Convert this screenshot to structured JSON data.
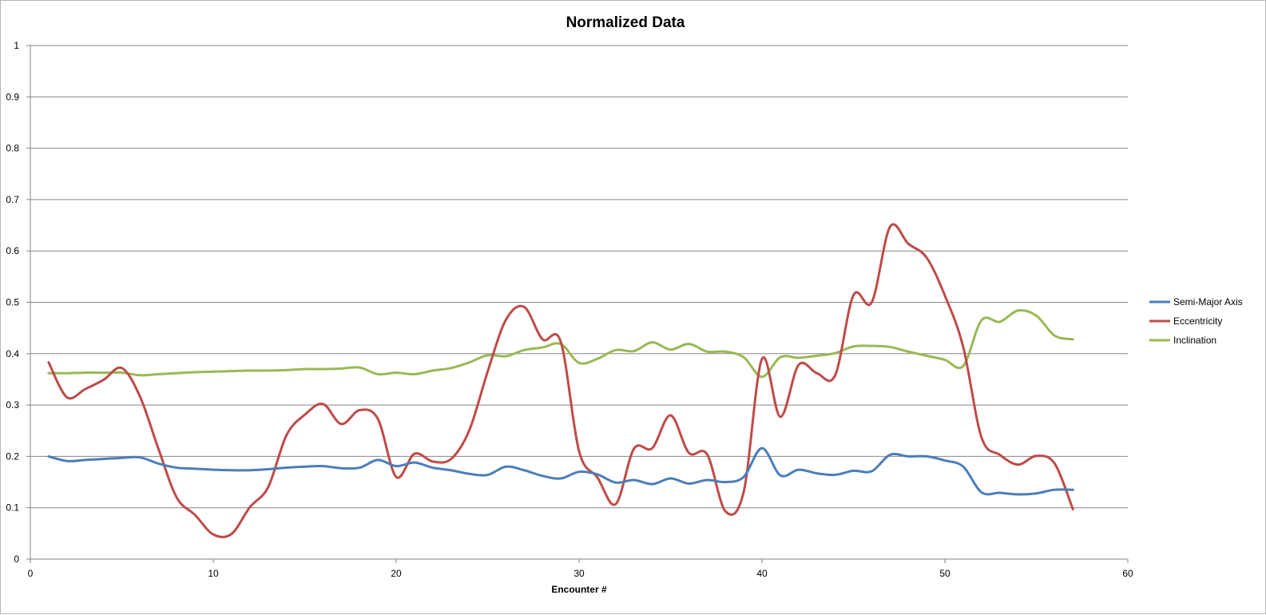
{
  "chart_data": {
    "type": "line",
    "title": "Normalized Data",
    "xlabel": "Encounter #",
    "ylabel": "",
    "xlim": [
      0,
      60
    ],
    "ylim": [
      0,
      1
    ],
    "x_ticks": [
      "0",
      "10",
      "20",
      "30",
      "40",
      "50",
      "60"
    ],
    "y_ticks": [
      "0",
      "0.1",
      "0.2",
      "0.3",
      "0.4",
      "0.5",
      "0.6",
      "0.7",
      "0.8",
      "0.9",
      "1"
    ],
    "grid": true,
    "legend_position": "right",
    "x": [
      1,
      2,
      3,
      4,
      5,
      6,
      7,
      8,
      9,
      10,
      11,
      12,
      13,
      14,
      15,
      16,
      17,
      18,
      19,
      20,
      21,
      22,
      23,
      24,
      25,
      26,
      27,
      28,
      29,
      30,
      31,
      32,
      33,
      34,
      35,
      36,
      37,
      38,
      39,
      40,
      41,
      42,
      43,
      44,
      45,
      46,
      47,
      48,
      49,
      50,
      51,
      52,
      53,
      54,
      55,
      56,
      57
    ],
    "series": [
      {
        "name": "Semi-Major Axis",
        "color": "#4a7ebb",
        "values": [
          0.2,
          0.191,
          0.193,
          0.195,
          0.197,
          0.198,
          0.186,
          0.178,
          0.176,
          0.174,
          0.173,
          0.173,
          0.175,
          0.178,
          0.18,
          0.181,
          0.177,
          0.178,
          0.193,
          0.181,
          0.188,
          0.178,
          0.173,
          0.166,
          0.164,
          0.18,
          0.173,
          0.162,
          0.157,
          0.17,
          0.165,
          0.149,
          0.154,
          0.146,
          0.157,
          0.147,
          0.154,
          0.15,
          0.16,
          0.216,
          0.163,
          0.174,
          0.167,
          0.164,
          0.172,
          0.171,
          0.203,
          0.2,
          0.2,
          0.192,
          0.18,
          0.13,
          0.129,
          0.126,
          0.128,
          0.135,
          0.135
        ]
      },
      {
        "name": "Eccentricity",
        "color": "#be4b48",
        "values": [
          0.383,
          0.315,
          0.331,
          0.349,
          0.372,
          0.316,
          0.215,
          0.12,
          0.086,
          0.048,
          0.049,
          0.101,
          0.14,
          0.241,
          0.281,
          0.302,
          0.263,
          0.29,
          0.273,
          0.16,
          0.205,
          0.19,
          0.195,
          0.251,
          0.365,
          0.466,
          0.491,
          0.428,
          0.423,
          0.21,
          0.159,
          0.107,
          0.215,
          0.216,
          0.28,
          0.207,
          0.204,
          0.093,
          0.131,
          0.39,
          0.277,
          0.378,
          0.362,
          0.358,
          0.514,
          0.5,
          0.647,
          0.614,
          0.587,
          0.513,
          0.413,
          0.237,
          0.203,
          0.184,
          0.201,
          0.186,
          0.097
        ]
      },
      {
        "name": "Inclination",
        "color": "#98b954",
        "values": [
          0.362,
          0.362,
          0.363,
          0.363,
          0.363,
          0.358,
          0.36,
          0.362,
          0.364,
          0.365,
          0.366,
          0.367,
          0.367,
          0.368,
          0.37,
          0.37,
          0.371,
          0.373,
          0.36,
          0.363,
          0.36,
          0.367,
          0.372,
          0.383,
          0.397,
          0.395,
          0.407,
          0.412,
          0.419,
          0.382,
          0.39,
          0.407,
          0.405,
          0.422,
          0.408,
          0.419,
          0.404,
          0.404,
          0.393,
          0.355,
          0.393,
          0.392,
          0.396,
          0.401,
          0.414,
          0.415,
          0.413,
          0.404,
          0.396,
          0.388,
          0.376,
          0.465,
          0.462,
          0.484,
          0.474,
          0.435,
          0.428
        ]
      }
    ]
  }
}
